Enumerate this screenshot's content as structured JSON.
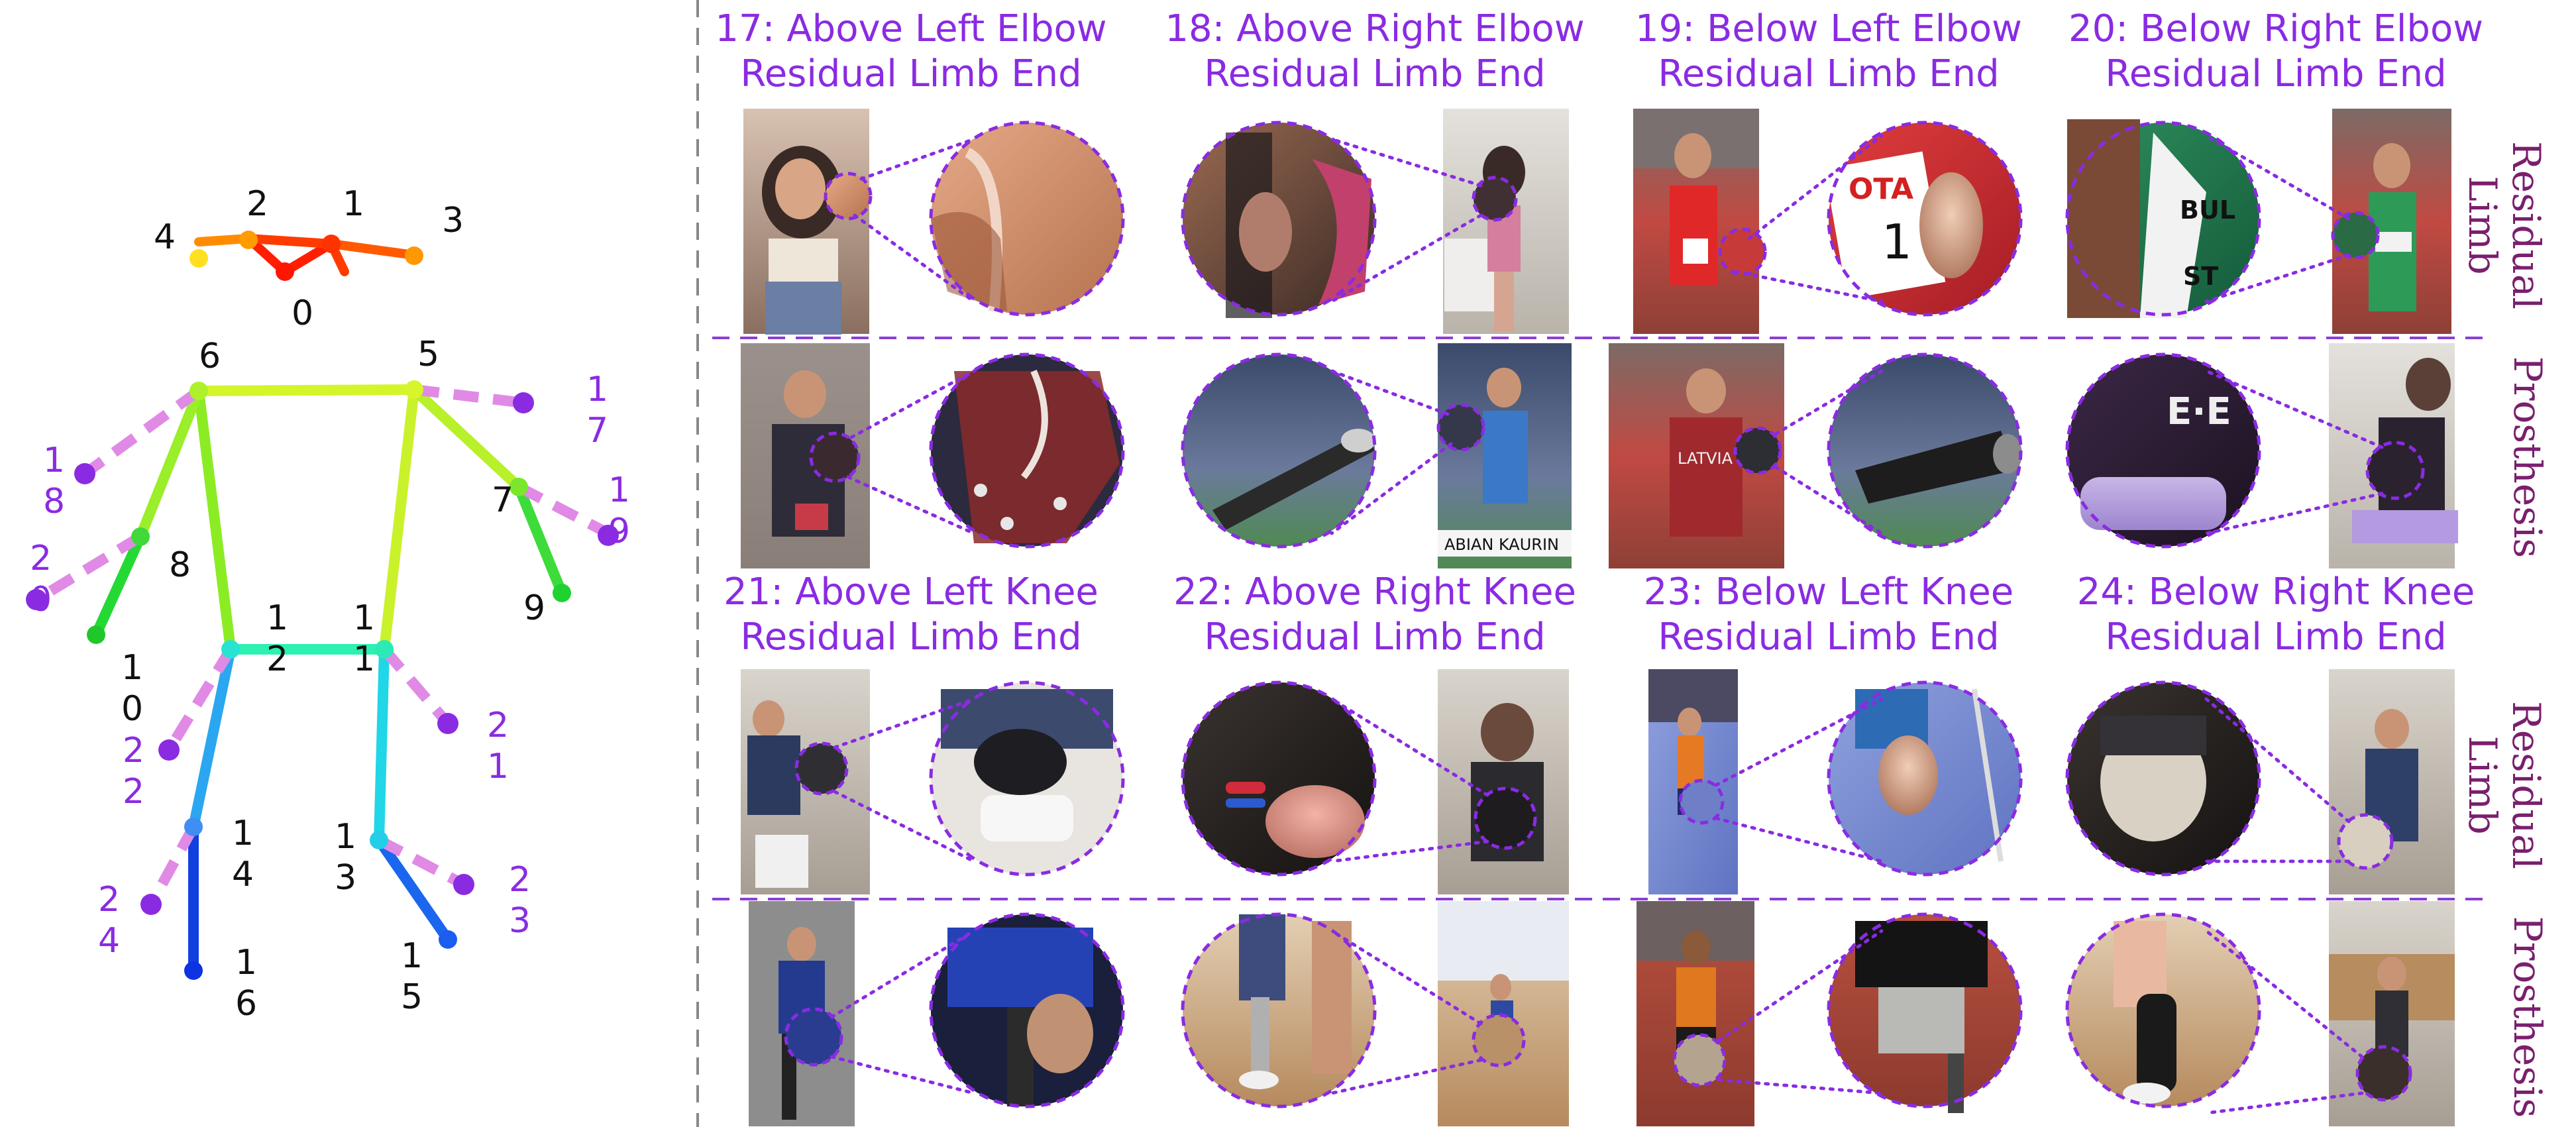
{
  "colors": {
    "title_purple": "#8a2be2",
    "side_label_purple": "#7a1f6e",
    "dashed_divider": "#8a3fd6",
    "zoom_dotted": "#8a2be2",
    "vertical_divider": "#888888",
    "label_black": "#111111",
    "added_keypoint_pink": "#e08ae6",
    "added_keypoint_dot": "#8a2be2"
  },
  "skeleton": {
    "keypoints": [
      {
        "id": "0",
        "label": "0"
      },
      {
        "id": "1",
        "label": "1"
      },
      {
        "id": "2",
        "label": "2"
      },
      {
        "id": "3",
        "label": "3"
      },
      {
        "id": "4",
        "label": "4"
      },
      {
        "id": "5",
        "label": "5"
      },
      {
        "id": "6",
        "label": "6"
      },
      {
        "id": "7",
        "label": "7"
      },
      {
        "id": "8",
        "label": "8"
      },
      {
        "id": "9",
        "label": "9"
      },
      {
        "id": "10",
        "label": "1\n0"
      },
      {
        "id": "11",
        "label": "1\n1"
      },
      {
        "id": "12",
        "label": "1\n2"
      },
      {
        "id": "13",
        "label": "1\n3"
      },
      {
        "id": "14",
        "label": "1\n4"
      },
      {
        "id": "15",
        "label": "1\n5"
      },
      {
        "id": "16",
        "label": "1\n6"
      }
    ],
    "added_keypoints": [
      {
        "id": "17",
        "label": "1\n7"
      },
      {
        "id": "18",
        "label": "1\n8"
      },
      {
        "id": "19",
        "label": "1\n9"
      },
      {
        "id": "20",
        "label": "2\n0"
      },
      {
        "id": "21",
        "label": "2\n1"
      },
      {
        "id": "22",
        "label": "2\n2"
      },
      {
        "id": "23",
        "label": "2\n3"
      },
      {
        "id": "24",
        "label": "2\n4"
      }
    ]
  },
  "panels": [
    {
      "row": 1,
      "col": 1,
      "title_line1": "17:  Above Left Elbow",
      "title_line2": "Residual Limb End"
    },
    {
      "row": 1,
      "col": 2,
      "title_line1": "18:  Above Right Elbow",
      "title_line2": "Residual Limb End"
    },
    {
      "row": 1,
      "col": 3,
      "title_line1": "19:  Below Left Elbow",
      "title_line2": "Residual Limb End"
    },
    {
      "row": 1,
      "col": 4,
      "title_line1": "20:  Below Right Elbow",
      "title_line2": "Residual Limb End"
    },
    {
      "row": 3,
      "col": 1,
      "title_line1": "21:  Above Left Knee",
      "title_line2": "Residual Limb End"
    },
    {
      "row": 3,
      "col": 2,
      "title_line1": "22:  Above Right Knee",
      "title_line2": "Residual Limb End"
    },
    {
      "row": 3,
      "col": 3,
      "title_line1": "23:  Below Left Knee",
      "title_line2": "Residual Limb End"
    },
    {
      "row": 3,
      "col": 4,
      "title_line1": "24:  Below Right Knee",
      "title_line2": "Residual Limb End"
    }
  ],
  "row_labels": [
    {
      "row": 1,
      "line1": "Residual",
      "line2": "Limb"
    },
    {
      "row": 2,
      "line1": "Prosthesis",
      "line2": ""
    },
    {
      "row": 3,
      "line1": "Residual",
      "line2": "Limb"
    },
    {
      "row": 4,
      "line1": "Prosthesis",
      "line2": ""
    }
  ],
  "photo_texts": {
    "tota": "OTA",
    "bib_one": "1",
    "bul": "BUL",
    "st": "ST",
    "kaurin": "ABIAN KAURIN",
    "latvia": "LATVIA"
  }
}
